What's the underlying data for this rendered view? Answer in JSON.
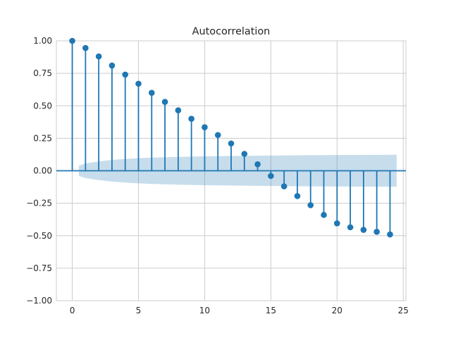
{
  "chart_data": {
    "type": "stem",
    "title": "Autocorrelation",
    "xlabel": "",
    "ylabel": "",
    "xlim": [
      -1.2,
      25.2
    ],
    "ylim": [
      -1.0,
      1.0
    ],
    "x_ticks": [
      0,
      5,
      10,
      15,
      20,
      25
    ],
    "x_tick_labels": [
      "0",
      "5",
      "10",
      "15",
      "20",
      "25"
    ],
    "y_ticks": [
      -1.0,
      -0.75,
      -0.5,
      -0.25,
      0.0,
      0.25,
      0.5,
      0.75,
      1.0
    ],
    "y_tick_labels": [
      "−1.00",
      "−0.75",
      "−0.50",
      "−0.25",
      "0.00",
      "0.25",
      "0.50",
      "0.75",
      "1.00"
    ],
    "grid": true,
    "lags": [
      0,
      1,
      2,
      3,
      4,
      5,
      6,
      7,
      8,
      9,
      10,
      11,
      12,
      13,
      14,
      15,
      16,
      17,
      18,
      19,
      20,
      21,
      22,
      23,
      24
    ],
    "values": [
      1.0,
      0.945,
      0.88,
      0.81,
      0.74,
      0.67,
      0.6,
      0.53,
      0.465,
      0.4,
      0.335,
      0.275,
      0.21,
      0.13,
      0.05,
      -0.04,
      -0.12,
      -0.195,
      -0.265,
      -0.34,
      -0.405,
      -0.435,
      -0.455,
      -0.47,
      -0.49
    ],
    "confidence_interval": {
      "lags": [
        0.5,
        1,
        2,
        3,
        4,
        5,
        6,
        8,
        10,
        12,
        14,
        16,
        18,
        20,
        22,
        24.5
      ],
      "upper": [
        0.04,
        0.056,
        0.072,
        0.083,
        0.091,
        0.097,
        0.101,
        0.107,
        0.111,
        0.114,
        0.116,
        0.118,
        0.12,
        0.121,
        0.122,
        0.123
      ],
      "lower": [
        -0.04,
        -0.056,
        -0.072,
        -0.083,
        -0.091,
        -0.097,
        -0.101,
        -0.107,
        -0.111,
        -0.114,
        -0.116,
        -0.118,
        -0.12,
        -0.121,
        -0.122,
        -0.123
      ]
    },
    "colors": {
      "series": "#1f77b4",
      "grid": "#cccccc",
      "text": "#262626",
      "background": "#ffffff"
    }
  }
}
